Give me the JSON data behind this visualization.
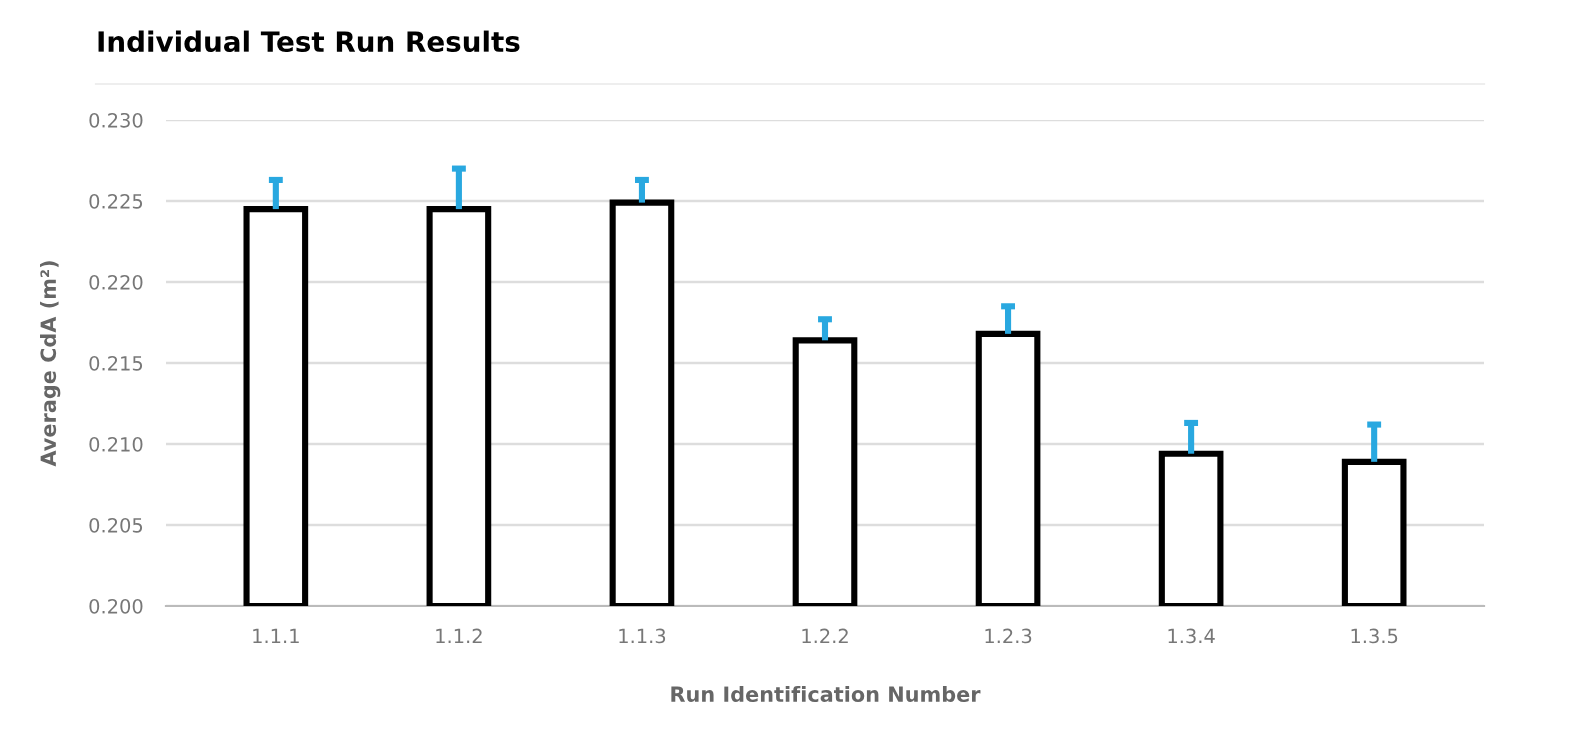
{
  "chart_data": {
    "type": "bar",
    "title": "Individual Test Run Results",
    "xlabel": "Run Identification Number",
    "ylabel": "Average CdA (m²)",
    "categories": [
      "1.1.1",
      "1.1.2",
      "1.1.3",
      "1.2.2",
      "1.2.3",
      "1.3.4",
      "1.3.5"
    ],
    "series": [
      {
        "color": "#ffffff",
        "values": [
          0.2245,
          0.2245,
          0.2249,
          0.2164,
          0.2168,
          0.2094,
          0.2089
        ],
        "errors": [
          [
            0.2245,
            0.2263
          ],
          [
            0.2245,
            0.227
          ],
          [
            0.2249,
            0.2263
          ],
          [
            0.2164,
            0.2177
          ],
          [
            0.2168,
            0.2185
          ],
          [
            0.2094,
            0.2113
          ],
          [
            0.2089,
            0.2112
          ]
        ]
      }
    ],
    "ylim": [
      0.2,
      0.23
    ],
    "yticks": [
      {
        "value": 0.2,
        "label": "0.200"
      },
      {
        "value": 0.205,
        "label": "0.205"
      },
      {
        "value": 0.21,
        "label": "0.210"
      },
      {
        "value": 0.215,
        "label": "0.215"
      },
      {
        "value": 0.22,
        "label": "0.220"
      },
      {
        "value": 0.225,
        "label": "0.225"
      },
      {
        "value": 0.23,
        "label": "0.230"
      }
    ],
    "grid": "y"
  }
}
